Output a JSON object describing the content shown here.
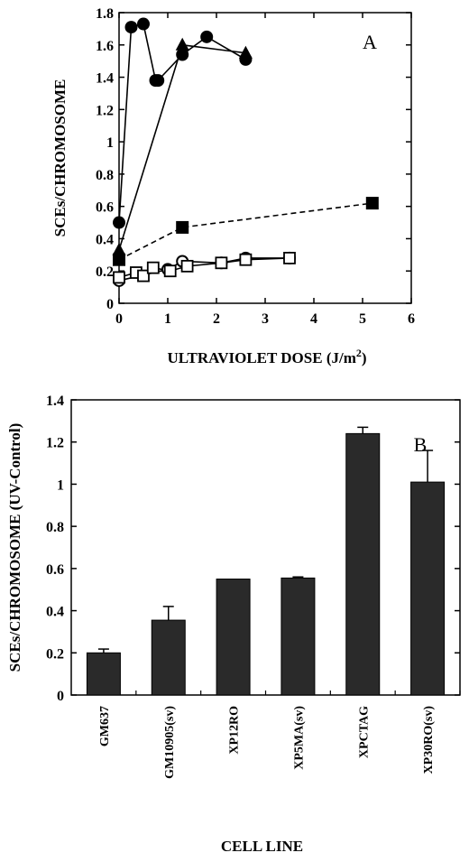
{
  "chart_data": [
    {
      "type": "scatter",
      "panel_label": "A",
      "xlabel": "ULTRAVIOLET DOSE (J/m",
      "xlabel_sup": "2",
      "xlabel_close": ")",
      "ylabel": "SCEs/CHROMOSOME",
      "xlim": [
        0,
        6
      ],
      "ylim": [
        0,
        1.8
      ],
      "xticks": [
        "0",
        "1",
        "2",
        "3",
        "4",
        "5",
        "6"
      ],
      "yticks": [
        "0",
        "0.2",
        "0.4",
        "0.6",
        "0.8",
        "1",
        "1.2",
        "1.4",
        "1.6",
        "1.8"
      ],
      "series": [
        {
          "marker": "filled-circle",
          "line": "solid",
          "x": [
            0,
            0.25,
            0.5,
            0.75,
            0.8,
            1.3,
            1.8,
            2.6
          ],
          "y": [
            0.5,
            1.71,
            1.73,
            1.38,
            1.38,
            1.54,
            1.65,
            1.51
          ]
        },
        {
          "marker": "filled-triangle",
          "line": "solid",
          "x": [
            0,
            1.3,
            2.6
          ],
          "y": [
            0.33,
            1.6,
            1.55
          ]
        },
        {
          "marker": "filled-square",
          "line": "dashed",
          "x": [
            0,
            1.3,
            5.2
          ],
          "y": [
            0.27,
            0.47,
            0.62
          ]
        },
        {
          "marker": "open-circle",
          "line": "solid",
          "x": [
            0,
            1.0,
            1.3,
            2.1,
            2.6,
            3.5
          ],
          "y": [
            0.14,
            0.21,
            0.26,
            0.25,
            0.28,
            0.28
          ]
        },
        {
          "marker": "open-square",
          "line": "solid",
          "x": [
            0,
            0.35,
            0.5,
            0.7,
            1.05,
            1.4,
            2.1,
            2.6,
            3.5
          ],
          "y": [
            0.16,
            0.19,
            0.17,
            0.22,
            0.2,
            0.23,
            0.25,
            0.27,
            0.28
          ]
        }
      ]
    },
    {
      "type": "bar",
      "panel_label": "B",
      "xlabel": "CELL LINE",
      "ylabel": "SCEs/CHROMOSOME (UV-Control)",
      "ylim": [
        0,
        1.4
      ],
      "yticks": [
        "0",
        "0.2",
        "0.4",
        "0.6",
        "0.8",
        "1",
        "1.2",
        "1.4"
      ],
      "categories": [
        "GM637",
        "GM10905(sv)",
        "XP12RO",
        "XP5MA(sv)",
        "XPCTAG",
        "XP30RO(sv)"
      ],
      "values": [
        0.2,
        0.355,
        0.55,
        0.555,
        1.24,
        1.01
      ],
      "errors": [
        0.018,
        0.065,
        0,
        0.005,
        0.03,
        0.15
      ],
      "bar_color": "#2a2a2a"
    }
  ]
}
